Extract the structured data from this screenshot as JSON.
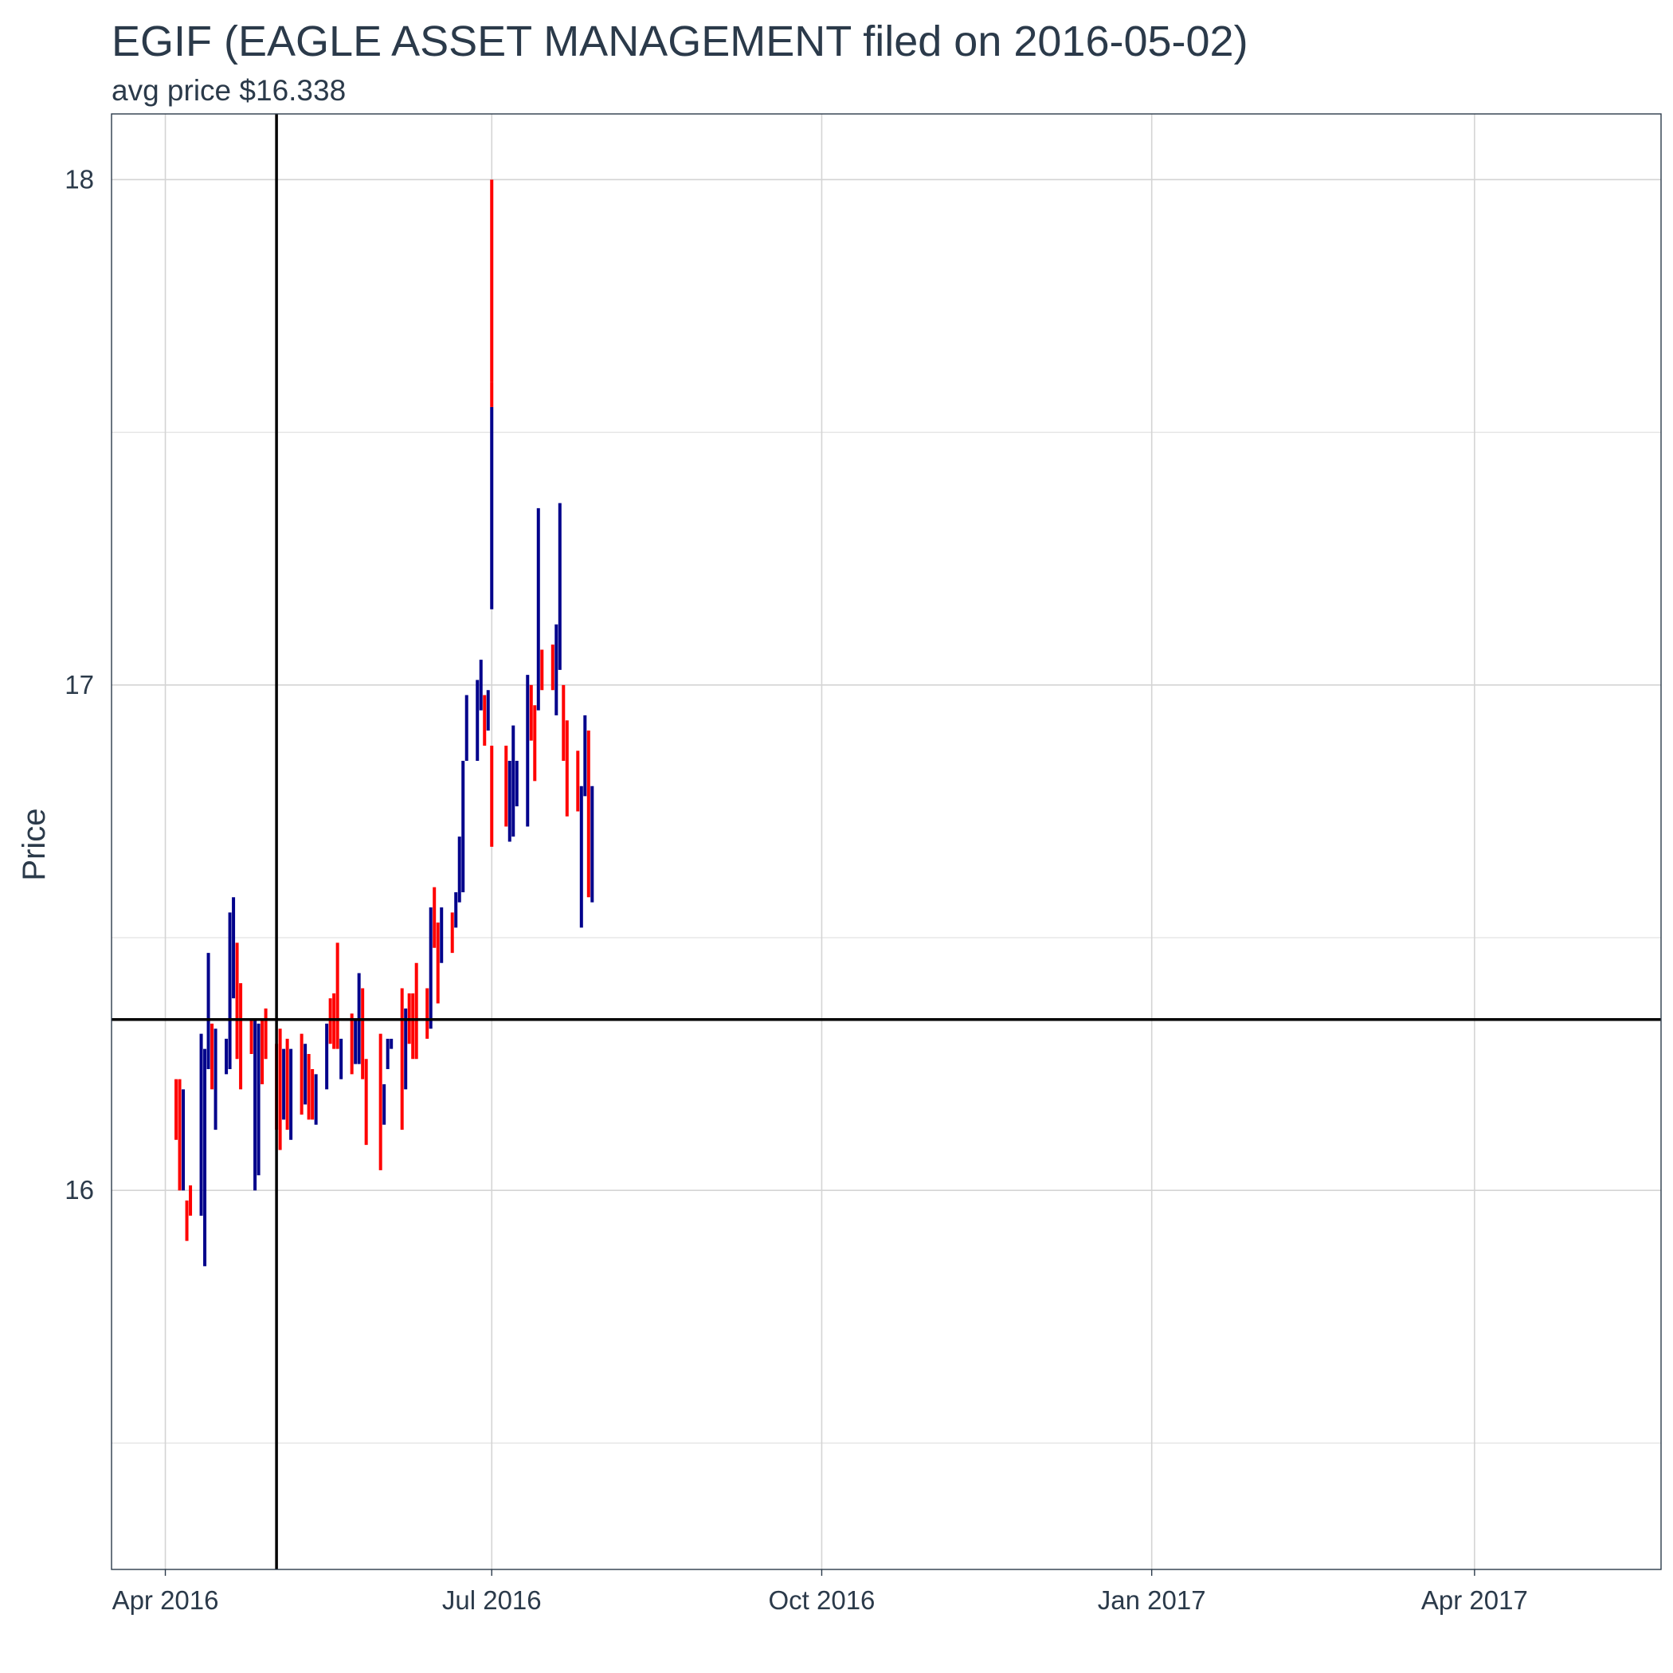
{
  "chart_data": {
    "type": "ohlc",
    "title": "EGIF (EAGLE ASSET MANAGEMENT filed on 2016-05-02)",
    "subtitle": "avg price $16.338",
    "ylabel": "Price",
    "xlabel": "",
    "x_ticks": [
      {
        "date": "2016-04-01",
        "label": "Apr 2016"
      },
      {
        "date": "2016-07-01",
        "label": "Jul 2016"
      },
      {
        "date": "2016-10-01",
        "label": "Oct 2016"
      },
      {
        "date": "2017-01-01",
        "label": "Jan 2017"
      },
      {
        "date": "2017-04-01",
        "label": "Apr 2017"
      }
    ],
    "y_ticks": [
      16,
      17,
      18
    ],
    "xlim": [
      "2016-03-17",
      "2017-05-23"
    ],
    "ylim": [
      15.25,
      18.13
    ],
    "grid": true,
    "filing_date": "2016-05-02",
    "avg_price": 16.338,
    "colors": {
      "up": "#00008b",
      "down": "#ff0000",
      "reference_line": "#000000",
      "text": "#2b3a4a"
    },
    "bars": [
      [
        "2016-04-04",
        16.29,
        16.22,
        16.1,
        16.15
      ],
      [
        "2016-04-05",
        16.2,
        16.22,
        16.0,
        16.05
      ],
      [
        "2016-04-06",
        16.05,
        16.2,
        16.0,
        16.2
      ],
      [
        "2016-04-07",
        15.95,
        15.98,
        15.9,
        15.92
      ],
      [
        "2016-04-08",
        16.0,
        16.01,
        15.95,
        15.98
      ],
      [
        "2016-04-11",
        15.96,
        16.31,
        15.95,
        16.25
      ],
      [
        "2016-04-12",
        16.27,
        16.28,
        15.85,
        16.27
      ],
      [
        "2016-04-13",
        16.25,
        16.47,
        16.24,
        16.42
      ],
      [
        "2016-04-14",
        16.32,
        16.33,
        16.2,
        16.21
      ],
      [
        "2016-04-15",
        16.26,
        16.32,
        16.12,
        16.32
      ],
      [
        "2016-04-18",
        16.23,
        16.3,
        16.23,
        16.28
      ],
      [
        "2016-04-19",
        16.29,
        16.55,
        16.24,
        16.52
      ],
      [
        "2016-04-20",
        16.39,
        16.58,
        16.38,
        16.56
      ],
      [
        "2016-04-21",
        16.49,
        16.49,
        16.26,
        16.29
      ],
      [
        "2016-04-22",
        16.41,
        16.41,
        16.2,
        16.25
      ],
      [
        "2016-04-25",
        16.33,
        16.34,
        16.27,
        16.3
      ],
      [
        "2016-04-26",
        16.2,
        16.34,
        16.0,
        16.2
      ],
      [
        "2016-04-27",
        16.05,
        16.33,
        16.03,
        16.29
      ],
      [
        "2016-04-28",
        16.29,
        16.34,
        16.21,
        16.22
      ],
      [
        "2016-04-29",
        16.31,
        16.36,
        16.26,
        16.28
      ],
      [
        "2016-05-02",
        16.25,
        16.29,
        16.12,
        16.22
      ],
      [
        "2016-05-03",
        16.22,
        16.32,
        16.08,
        16.1
      ],
      [
        "2016-05-04",
        16.15,
        16.28,
        16.14,
        16.17
      ],
      [
        "2016-05-05",
        16.27,
        16.3,
        16.12,
        16.14
      ],
      [
        "2016-05-06",
        16.14,
        16.28,
        16.1,
        16.24
      ],
      [
        "2016-05-09",
        16.25,
        16.31,
        16.15,
        16.21
      ],
      [
        "2016-05-10",
        16.22,
        16.29,
        16.17,
        16.26
      ],
      [
        "2016-05-11",
        16.27,
        16.27,
        16.14,
        16.23
      ],
      [
        "2016-05-12",
        16.24,
        16.24,
        16.14,
        16.16
      ],
      [
        "2016-05-13",
        16.16,
        16.23,
        16.13,
        16.2
      ],
      [
        "2016-05-16",
        16.2,
        16.33,
        16.2,
        16.3
      ],
      [
        "2016-05-17",
        16.37,
        16.38,
        16.29,
        16.31
      ],
      [
        "2016-05-18",
        16.34,
        16.39,
        16.28,
        16.33
      ],
      [
        "2016-05-19",
        16.37,
        16.49,
        16.28,
        16.31
      ],
      [
        "2016-05-20",
        16.25,
        16.3,
        16.22,
        16.26
      ],
      [
        "2016-05-23",
        16.33,
        16.35,
        16.23,
        16.24
      ],
      [
        "2016-05-24",
        16.29,
        16.34,
        16.25,
        16.33
      ],
      [
        "2016-05-25",
        16.29,
        16.43,
        16.25,
        16.41
      ],
      [
        "2016-05-26",
        16.37,
        16.4,
        16.22,
        16.23
      ],
      [
        "2016-05-27",
        16.22,
        16.26,
        16.09,
        16.12
      ],
      [
        "2016-05-31",
        16.18,
        16.31,
        16.04,
        16.16
      ],
      [
        "2016-06-01",
        16.16,
        16.21,
        16.13,
        16.17
      ],
      [
        "2016-06-02",
        16.24,
        16.3,
        16.24,
        16.28
      ],
      [
        "2016-06-03",
        16.28,
        16.3,
        16.28,
        16.29
      ],
      [
        "2016-06-06",
        16.29,
        16.4,
        16.12,
        16.24
      ],
      [
        "2016-06-07",
        16.24,
        16.36,
        16.2,
        16.29
      ],
      [
        "2016-06-08",
        16.34,
        16.39,
        16.29,
        16.32
      ],
      [
        "2016-06-09",
        16.36,
        16.39,
        16.26,
        16.3
      ],
      [
        "2016-06-10",
        16.41,
        16.45,
        16.26,
        16.35
      ],
      [
        "2016-06-13",
        16.37,
        16.4,
        16.3,
        16.33
      ],
      [
        "2016-06-14",
        16.42,
        16.56,
        16.32,
        16.48
      ],
      [
        "2016-06-15",
        16.54,
        16.6,
        16.48,
        16.51
      ],
      [
        "2016-06-16",
        16.45,
        16.53,
        16.37,
        16.44
      ],
      [
        "2016-06-17",
        16.47,
        16.56,
        16.45,
        16.55
      ],
      [
        "2016-06-20",
        16.52,
        16.55,
        16.47,
        16.5
      ],
      [
        "2016-06-21",
        16.55,
        16.59,
        16.52,
        16.58
      ],
      [
        "2016-06-22",
        16.58,
        16.7,
        16.57,
        16.6
      ],
      [
        "2016-06-23",
        16.8,
        16.85,
        16.59,
        16.82
      ],
      [
        "2016-06-24",
        16.9,
        16.98,
        16.85,
        16.96
      ],
      [
        "2016-06-27",
        16.93,
        17.01,
        16.85,
        16.99
      ],
      [
        "2016-06-28",
        16.97,
        17.05,
        16.95,
        17.01
      ],
      [
        "2016-06-29",
        16.95,
        16.98,
        16.88,
        16.94
      ],
      [
        "2016-06-30",
        16.94,
        16.99,
        16.91,
        16.97
      ],
      [
        "2016-07-01",
        16.85,
        16.88,
        16.68,
        16.7
      ],
      [
        "2016-07-05",
        16.79,
        16.88,
        16.72,
        16.75
      ],
      [
        "2016-07-06",
        16.7,
        16.85,
        16.69,
        16.84
      ],
      [
        "2016-07-07",
        16.71,
        16.92,
        16.7,
        16.88
      ],
      [
        "2016-07-08",
        16.79,
        16.85,
        16.76,
        16.83
      ],
      [
        "2016-07-11",
        16.81,
        17.02,
        16.72,
        16.98
      ],
      [
        "2016-07-12",
        16.99,
        17.0,
        16.89,
        16.92
      ],
      [
        "2016-07-13",
        16.94,
        16.96,
        16.81,
        16.86
      ],
      [
        "2016-07-14",
        16.95,
        17.35,
        16.95,
        17.22
      ],
      [
        "2016-07-15",
        17.03,
        17.07,
        16.99,
        17.02
      ],
      [
        "2016-07-18",
        17.03,
        17.08,
        16.99,
        17.01
      ],
      [
        "2016-07-19",
        17.06,
        17.12,
        16.94,
        17.06
      ],
      [
        "2016-07-20",
        17.05,
        17.36,
        17.03,
        17.32
      ],
      [
        "2016-07-21",
        17.0,
        17.0,
        16.85,
        16.99
      ],
      [
        "2016-07-22",
        16.9,
        16.93,
        16.74,
        16.8
      ],
      [
        "2016-07-25",
        16.83,
        16.87,
        16.75,
        16.81
      ],
      [
        "2016-07-26",
        16.52,
        16.52,
        16.8,
        16.85
      ],
      [
        "2016-07-27",
        16.88,
        16.94,
        16.78,
        16.92
      ],
      [
        "2016-07-28",
        16.9,
        16.91,
        16.58,
        16.7
      ],
      [
        "2016-07-29",
        16.72,
        16.8,
        16.57,
        16.76
      ],
      [
        "2016-07-01",
        17.15,
        17.55,
        17.15,
        17.52
      ],
      [
        "2016-07-01",
        17.6,
        17.6,
        17.55,
        17.58
      ],
      [
        "2016-07-01",
        17.63,
        18.0,
        17.6,
        17.62
      ]
    ]
  }
}
